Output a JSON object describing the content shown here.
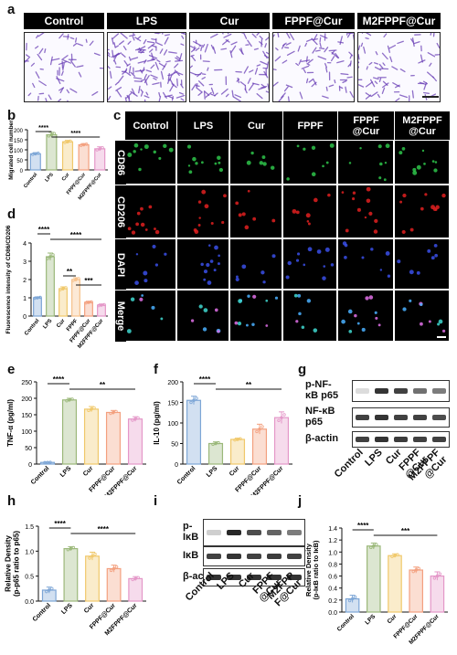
{
  "panels": {
    "a": "a",
    "b": "b",
    "c": "c",
    "d": "d",
    "e": "e",
    "f": "f",
    "g": "g",
    "h": "h",
    "i": "i",
    "j": "j"
  },
  "a_headers": [
    "Control",
    "LPS",
    "Cur",
    "FPPF@Cur",
    "M2FPPF@Cur"
  ],
  "c_headers": [
    "Control",
    "LPS",
    "Cur",
    "FPPF",
    "FPPF\n@Cur",
    "M2FPPF\n@Cur"
  ],
  "c_rows": [
    "CD86",
    "CD206",
    "DAPI",
    "Merge"
  ],
  "group_labels": [
    "Control",
    "LPS",
    "Cur",
    "FPPF@Cur",
    "M2FPPF@Cur"
  ],
  "d_groups": [
    "Control",
    "LPS",
    "Cur",
    "FPPF",
    "FPPF@Cur",
    "M2FPPF@Cur"
  ],
  "wb_g": {
    "labels": [
      "p-NF-\nκB p65",
      "NF-κB\np65",
      "β-actin"
    ],
    "lanes": [
      "Control",
      "LPS",
      "Cur",
      "FPPF\n@Cur",
      "M2FPPF\n@Cur"
    ]
  },
  "wb_i": {
    "labels": [
      "p-\nIκB",
      "IκB",
      "β-actin"
    ],
    "lanes": [
      "Control",
      "LPS",
      "Cur",
      "FPPF\n@Cur",
      "M2FPP\nF@Cur"
    ]
  },
  "colors": {
    "control": "#7da6d6",
    "lps": "#9bb87a",
    "cur": "#f0c86a",
    "fppf": "#f6c08a",
    "fppfcur": "#f3a07f",
    "m2": "#e497c8"
  },
  "chart_data": [
    {
      "panel": "b",
      "type": "bar",
      "categories": [
        "Control",
        "LPS",
        "Cur",
        "FPPF@Cur",
        "M2FPPF@Cur"
      ],
      "values": [
        80,
        175,
        140,
        125,
        105
      ],
      "errors": [
        6,
        12,
        7,
        6,
        10
      ],
      "ylabel": "Migrated cell number",
      "ylim": [
        0,
        200
      ],
      "yticks": [
        0,
        50,
        100,
        150,
        200
      ],
      "sig": [
        {
          "from": 0,
          "to": 1,
          "label": "****"
        },
        {
          "from": 1,
          "to": 4,
          "label": "****"
        }
      ]
    },
    {
      "panel": "d",
      "type": "bar",
      "categories": [
        "Control",
        "LPS",
        "Cur",
        "FPPF",
        "FPPF@Cur",
        "M2FPPF@Cur"
      ],
      "values": [
        1.0,
        3.25,
        1.5,
        2.0,
        0.75,
        0.6
      ],
      "errors": [
        0.05,
        0.2,
        0.1,
        0.1,
        0.06,
        0.06
      ],
      "ylabel": "Fluorescence intensity of CD86/CD206",
      "ylim": [
        0,
        4
      ],
      "yticks": [
        0,
        1,
        2,
        3,
        4
      ],
      "sig": [
        {
          "from": 0,
          "to": 1,
          "label": "****"
        },
        {
          "from": 1,
          "to": 5,
          "label": "****"
        },
        {
          "from": 2,
          "to": 3,
          "label": "**"
        },
        {
          "from": 3,
          "to": 5,
          "label": "***"
        }
      ]
    },
    {
      "panel": "e",
      "type": "bar",
      "categories": [
        "Control",
        "LPS",
        "Cur",
        "FPPF@Cur",
        "M2FPPF@Cur"
      ],
      "values": [
        5,
        195,
        167,
        157,
        137
      ],
      "errors": [
        1,
        5,
        8,
        6,
        7
      ],
      "ylabel": "TNF-α (pg/ml)",
      "ylim": [
        0,
        250
      ],
      "yticks": [
        0,
        50,
        100,
        150,
        200,
        250
      ],
      "sig": [
        {
          "from": 0,
          "to": 1,
          "label": "****"
        },
        {
          "from": 1,
          "to": 4,
          "label": "**"
        }
      ]
    },
    {
      "panel": "f",
      "type": "bar",
      "categories": [
        "Control",
        "LPS",
        "Cur",
        "FPPF@Cur",
        "M2FPPF@Cur"
      ],
      "values": [
        155,
        50,
        60,
        85,
        113
      ],
      "errors": [
        10,
        4,
        3,
        12,
        14
      ],
      "ylabel": "IL-10 (pg/ml)",
      "ylim": [
        0,
        200
      ],
      "yticks": [
        0,
        50,
        100,
        150,
        200
      ],
      "sig": [
        {
          "from": 0,
          "to": 1,
          "label": "****"
        },
        {
          "from": 1,
          "to": 4,
          "label": "**"
        }
      ]
    },
    {
      "panel": "h",
      "type": "bar",
      "categories": [
        "Control",
        "LPS",
        "Cur",
        "FPPF@Cur",
        "M2FPPF@Cur"
      ],
      "values": [
        0.22,
        1.05,
        0.9,
        0.65,
        0.45
      ],
      "errors": [
        0.06,
        0.04,
        0.08,
        0.07,
        0.04
      ],
      "ylabel": "Relative Density\n(p-p65 ratio to p65)",
      "ylim": [
        0,
        1.5
      ],
      "yticks": [
        0.0,
        0.5,
        1.0,
        1.5
      ],
      "sig": [
        {
          "from": 0,
          "to": 1,
          "label": "****"
        },
        {
          "from": 1,
          "to": 4,
          "label": "****"
        }
      ]
    },
    {
      "panel": "j",
      "type": "bar",
      "categories": [
        "Control",
        "LPS",
        "Cur",
        "FPPF@Cur",
        "M2FPPF@Cur"
      ],
      "values": [
        0.22,
        1.1,
        0.94,
        0.7,
        0.6
      ],
      "errors": [
        0.06,
        0.05,
        0.03,
        0.05,
        0.07
      ],
      "ylabel": "Relative Density\n(p-IκB ratio to IκB)",
      "ylim": [
        0,
        1.4
      ],
      "yticks": [
        0.0,
        0.2,
        0.4,
        0.6,
        0.8,
        1.0,
        1.2,
        1.4
      ],
      "sig": [
        {
          "from": 0,
          "to": 1,
          "label": "****"
        },
        {
          "from": 1,
          "to": 4,
          "label": "***"
        }
      ]
    }
  ]
}
